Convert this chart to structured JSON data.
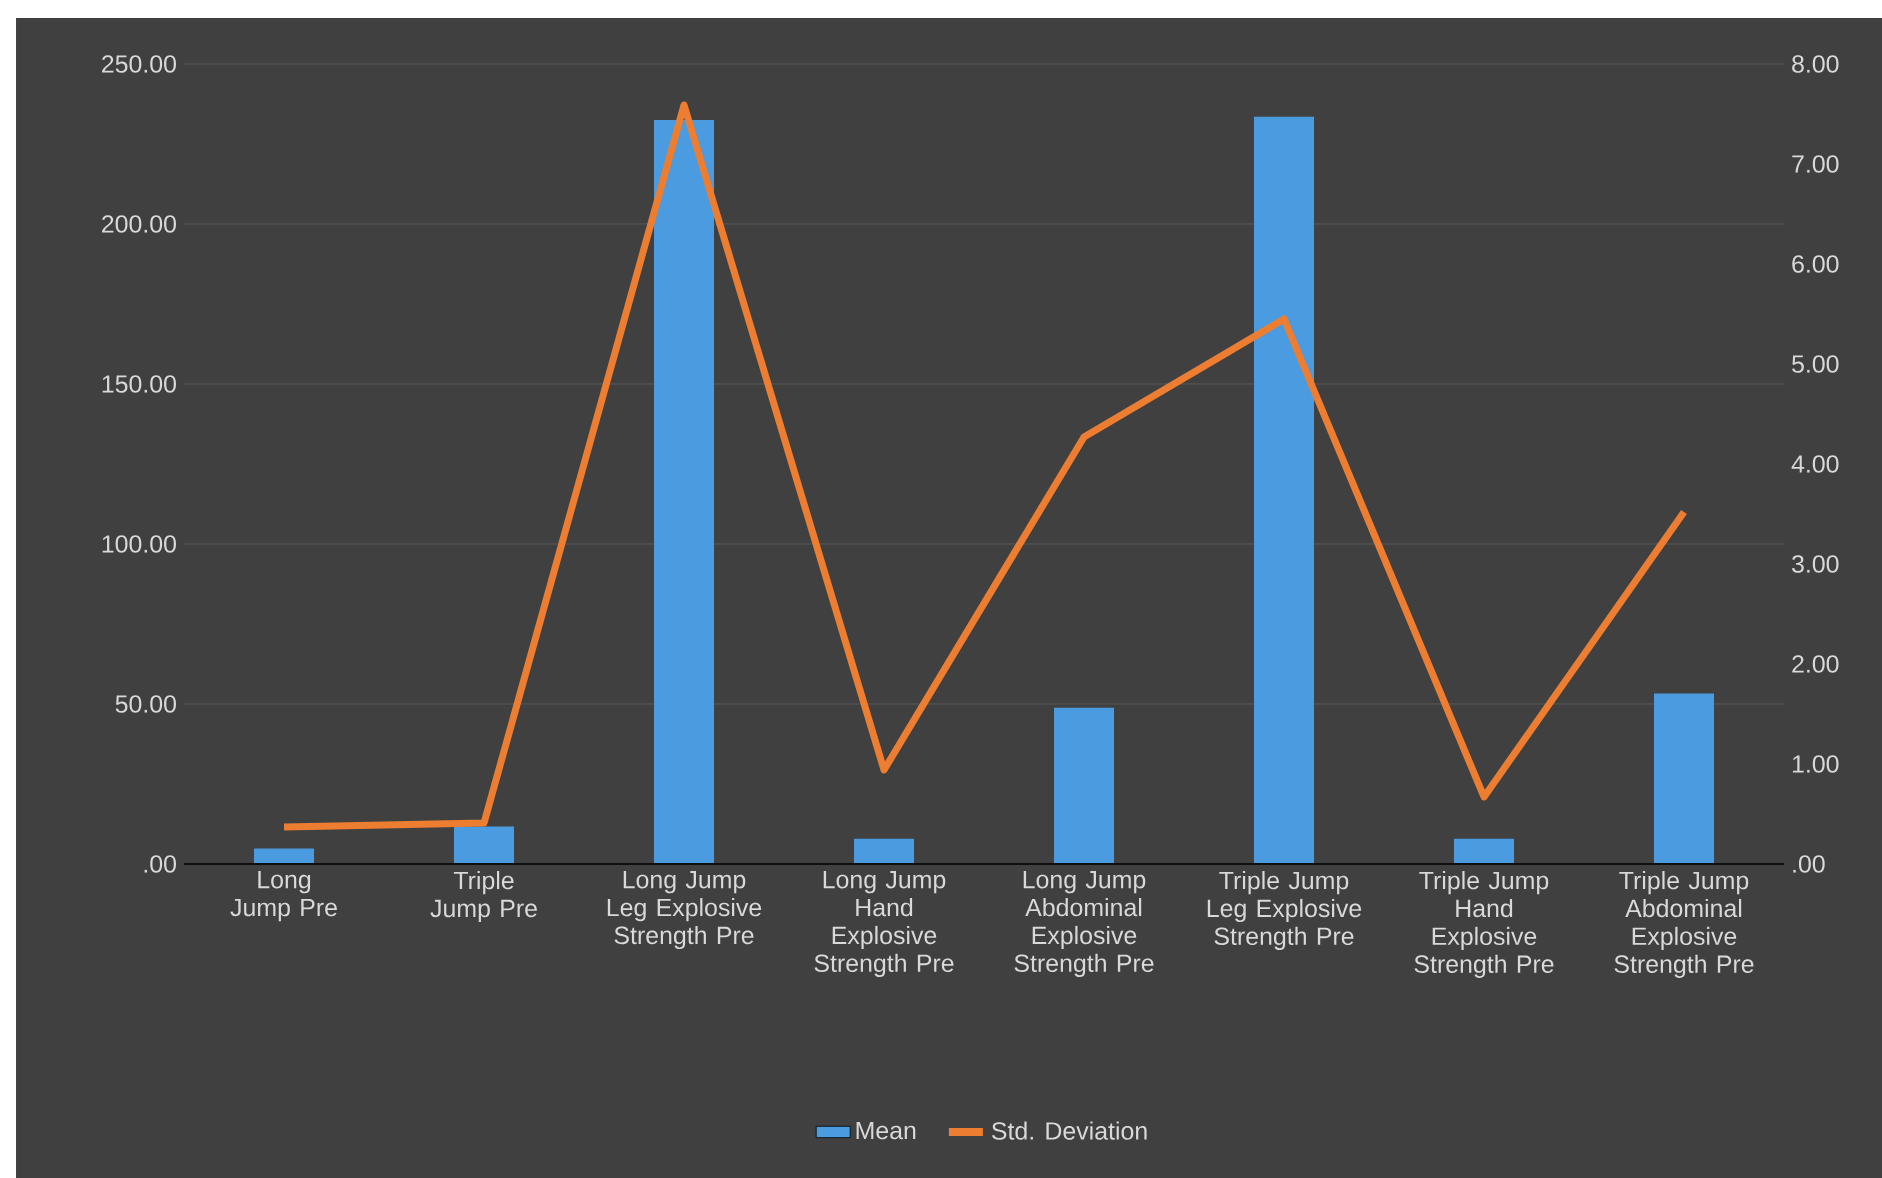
{
  "chart_data": {
    "type": "bar",
    "categories": [
      "Long Jump Pre",
      "Triple Jump Pre",
      "Long Jump Leg Explosive Strength Pre",
      "Long Jump Hand Explosive Strength Pre",
      "Long Jump Abdominal Explosive Strength Pre",
      "Triple Jump Leg Explosive Strength Pre",
      "Triple Jump Hand Explosive Strength Pre",
      "Triple Jump Abdominal Explosive Strength Pre"
    ],
    "series": [
      {
        "name": "Mean",
        "color": "#4a9be0",
        "values": [
          4.8,
          11.7,
          232.5,
          7.9,
          48.8,
          233.5,
          7.9,
          53.3
        ]
      },
      {
        "name": "Std. Deviation",
        "type": "line",
        "axis": "y2",
        "color": "#ed7d31",
        "values": [
          0.37,
          0.41,
          7.59,
          0.94,
          4.27,
          5.45,
          0.67,
          3.52
        ]
      }
    ],
    "ylim": [
      0,
      250
    ],
    "yticks": [
      {
        "value": 0,
        "label": ".00"
      },
      {
        "value": 50,
        "label": "50.00"
      },
      {
        "value": 100,
        "label": "100.00"
      },
      {
        "value": 150,
        "label": "150.00"
      },
      {
        "value": 200,
        "label": "200.00"
      },
      {
        "value": 250,
        "label": "250.00"
      }
    ],
    "y2lim": [
      0,
      8
    ],
    "y2ticks": [
      {
        "value": 0,
        "label": ".00"
      },
      {
        "value": 1,
        "label": "1.00"
      },
      {
        "value": 2,
        "label": "2.00"
      },
      {
        "value": 3,
        "label": "3.00"
      },
      {
        "value": 4,
        "label": "4.00"
      },
      {
        "value": 5,
        "label": "5.00"
      },
      {
        "value": 6,
        "label": "6.00"
      },
      {
        "value": 7,
        "label": "7.00"
      },
      {
        "value": 8,
        "label": "8.00"
      }
    ],
    "grid": "y",
    "legend": "bottom",
    "marker": "none",
    "line_style": "solid"
  }
}
